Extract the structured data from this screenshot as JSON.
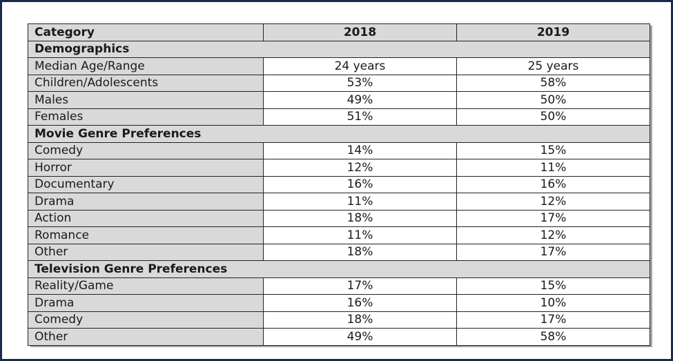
{
  "header": {
    "category": "Category",
    "year1": "2018",
    "year2": "2019"
  },
  "sections": [
    {
      "title": "Demographics",
      "rows": [
        {
          "label": "Median Age/Range",
          "v2018": "24 years",
          "v2019": "25 years"
        },
        {
          "label": "Children/Adolescents",
          "v2018": "53%",
          "v2019": "58%"
        },
        {
          "label": "Males",
          "v2018": "49%",
          "v2019": "50%"
        },
        {
          "label": "Females",
          "v2018": "51%",
          "v2019": "50%"
        }
      ]
    },
    {
      "title": "Movie Genre Preferences",
      "rows": [
        {
          "label": "Comedy",
          "v2018": "14%",
          "v2019": "15%"
        },
        {
          "label": "Horror",
          "v2018": "12%",
          "v2019": "11%"
        },
        {
          "label": "Documentary",
          "v2018": "16%",
          "v2019": "16%"
        },
        {
          "label": "Drama",
          "v2018": "11%",
          "v2019": "12%"
        },
        {
          "label": "Action",
          "v2018": "18%",
          "v2019": "17%"
        },
        {
          "label": "Romance",
          "v2018": "11%",
          "v2019": "12%"
        },
        {
          "label": "Other",
          "v2018": "18%",
          "v2019": "17%"
        }
      ]
    },
    {
      "title": "Television Genre Preferences",
      "rows": [
        {
          "label": "Reality/Game",
          "v2018": "17%",
          "v2019": "15%"
        },
        {
          "label": "Drama",
          "v2018": "16%",
          "v2019": "10%"
        },
        {
          "label": "Comedy",
          "v2018": "18%",
          "v2019": "17%"
        },
        {
          "label": "Other",
          "v2018": "49%",
          "v2019": "58%"
        }
      ]
    }
  ]
}
